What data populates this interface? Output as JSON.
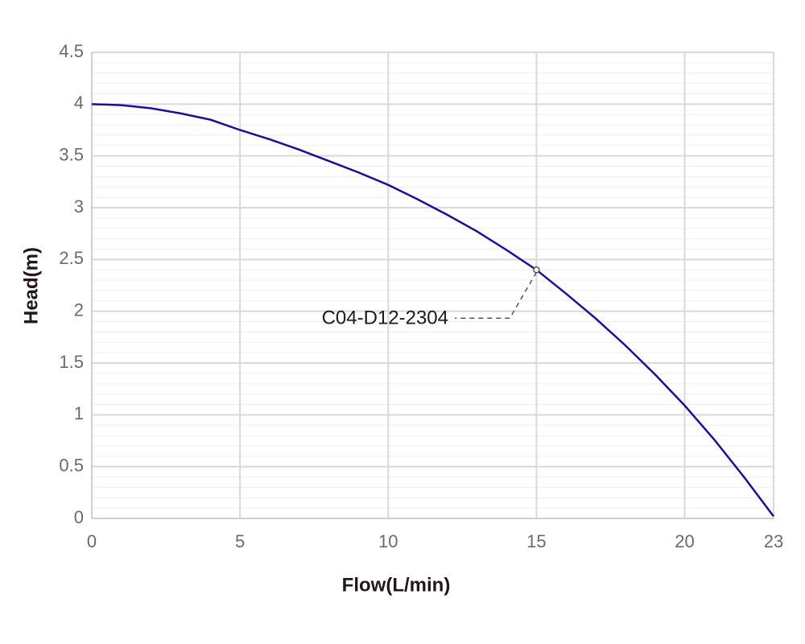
{
  "chart_data": {
    "type": "line",
    "x_label": "Flow(L/min)",
    "y_label": "Head(m)",
    "x": [
      0,
      1,
      2,
      3,
      4,
      5,
      6,
      7,
      8,
      9,
      10,
      11,
      12,
      13,
      14,
      15,
      16,
      17,
      18,
      19,
      20,
      21,
      22,
      23
    ],
    "series": [
      {
        "name": "C04-D12-2304",
        "color": "#1a0ea0",
        "values": [
          4.0,
          3.99,
          3.96,
          3.91,
          3.85,
          3.75,
          3.66,
          3.56,
          3.45,
          3.34,
          3.22,
          3.08,
          2.93,
          2.77,
          2.59,
          2.4,
          2.17,
          1.93,
          1.67,
          1.39,
          1.09,
          0.76,
          0.4,
          0.02
        ]
      }
    ],
    "xlim": [
      0,
      23
    ],
    "xticks": [
      0,
      5,
      10,
      15,
      20,
      23
    ],
    "ylim": [
      0,
      4.5
    ],
    "yticks": [
      0,
      0.5,
      1,
      1.5,
      2,
      2.5,
      3,
      3.5,
      4,
      4.5
    ],
    "grid": true
  }
}
